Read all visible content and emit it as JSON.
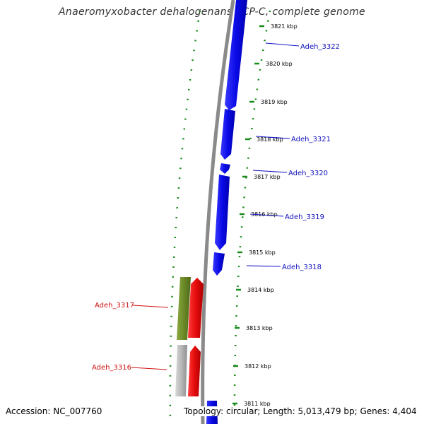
{
  "title": "Anaeromyxobacter dehalogenans 2CP-C, complete genome",
  "footer": {
    "accession": "Accession: NC_007760",
    "topology": "Topology: circular; Length: 5,013,479 bp; Genes: 4,404"
  },
  "ticks": [
    "3821 kbp",
    "3820 kbp",
    "3819 kbp",
    "3818 kbp",
    "3817 kbp",
    "3816 kbp",
    "3815 kbp",
    "3814 kbp",
    "3813 kbp",
    "3812 kbp",
    "3811 kbp"
  ],
  "genes_forward": [
    "Adeh_3322",
    "Adeh_3321",
    "Adeh_3320",
    "Adeh_3319",
    "Adeh_3318"
  ],
  "genes_reverse": [
    "Adeh_3317",
    "Adeh_3316"
  ],
  "colors": {
    "forward_gene": "#0a0ae6",
    "reverse_gene": "#e60d0d",
    "reverse_gene_alt": "#6b8a28",
    "pseudo_gene": "#b8b8b8",
    "backbone": "#8a8a8a",
    "tick": "#1a8a1a",
    "forward_label": "#1010c0",
    "reverse_label": "#d01010"
  }
}
